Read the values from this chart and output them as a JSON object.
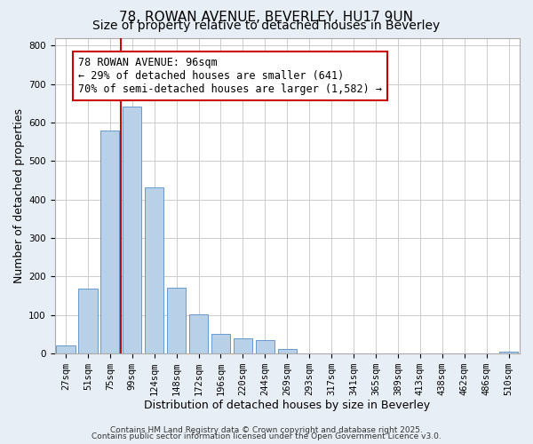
{
  "title": "78, ROWAN AVENUE, BEVERLEY, HU17 9UN",
  "subtitle": "Size of property relative to detached houses in Beverley",
  "xlabel": "Distribution of detached houses by size in Beverley",
  "ylabel": "Number of detached properties",
  "bar_labels": [
    "27sqm",
    "51sqm",
    "75sqm",
    "99sqm",
    "124sqm",
    "148sqm",
    "172sqm",
    "196sqm",
    "220sqm",
    "244sqm",
    "269sqm",
    "293sqm",
    "317sqm",
    "341sqm",
    "365sqm",
    "389sqm",
    "413sqm",
    "438sqm",
    "462sqm",
    "486sqm",
    "510sqm"
  ],
  "bar_values": [
    20,
    168,
    578,
    641,
    432,
    172,
    101,
    52,
    40,
    34,
    11,
    0,
    0,
    0,
    0,
    0,
    0,
    0,
    0,
    0,
    4
  ],
  "bar_color": "#b8d0e8",
  "bar_edge_color": "#6699cc",
  "vline_color": "#cc0000",
  "ylim": [
    0,
    820
  ],
  "annotation_text": "78 ROWAN AVENUE: 96sqm\n← 29% of detached houses are smaller (641)\n70% of semi-detached houses are larger (1,582) →",
  "annotation_box_color": "#ffffff",
  "annotation_box_edge": "#cc0000",
  "footer1": "Contains HM Land Registry data © Crown copyright and database right 2025.",
  "footer2": "Contains public sector information licensed under the Open Government Licence v3.0.",
  "bg_color": "#e8eef5",
  "plot_bg_color": "#ffffff",
  "grid_color": "#cccccc",
  "title_fontsize": 11,
  "subtitle_fontsize": 10,
  "axis_label_fontsize": 9,
  "tick_fontsize": 7.5,
  "annotation_fontsize": 8.5,
  "footer_fontsize": 6.5
}
